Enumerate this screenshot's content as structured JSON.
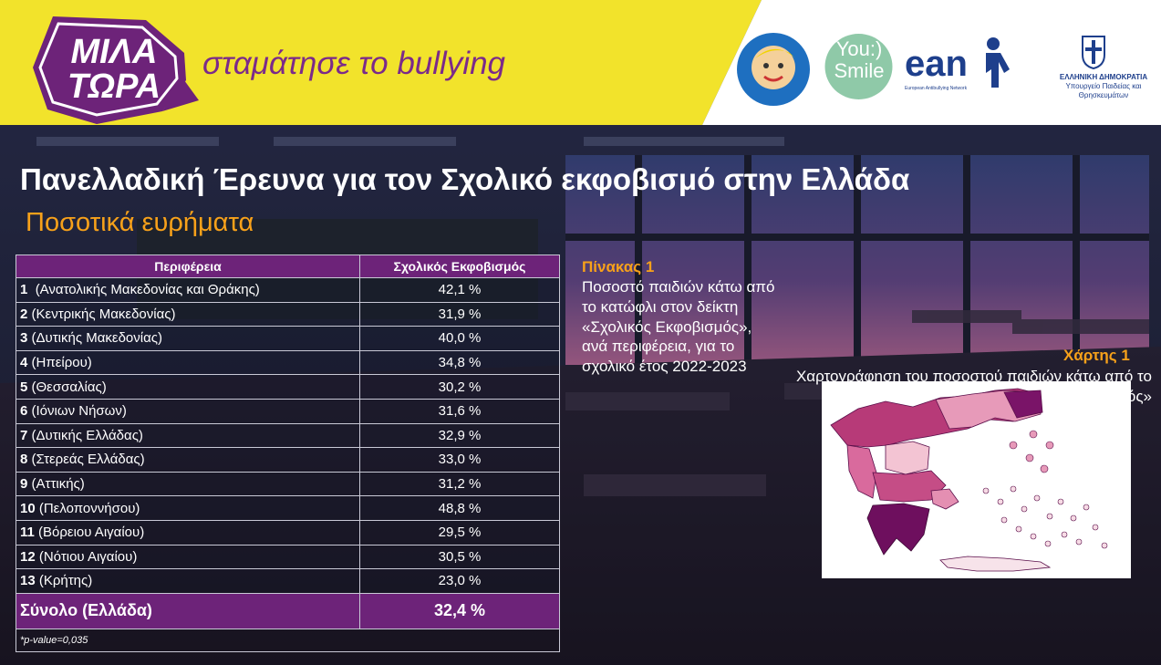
{
  "header": {
    "logo_text_line1": "ΜΙΛΑ",
    "logo_text_line2": "ΤΩΡΑ",
    "slogan": "σταμάτησε το bullying",
    "partners": {
      "smile_child_text": "Το χαμόγελο του παιδιού",
      "you_smile_text": "You:) Smile",
      "ean_text": "ean",
      "ean_sub": "European Antibullying Network",
      "gov_line1": "ΕΛΛΗΝΙΚΗ ΔΗΜΟΚΡΑΤΙΑ",
      "gov_line2": "Υπουργείο Παιδείας και Θρησκευμάτων"
    }
  },
  "title": "Πανελλαδική Έρευνα για τον Σχολικό εκφοβισμό στην Ελλάδα",
  "subtitle": "Ποσοτικά ευρήματα",
  "table": {
    "headers": [
      "Περιφέρεια",
      "Σχολικός Εκφοβισμός"
    ],
    "rows": [
      {
        "num": "1",
        "region": "(Ανατολικής Μακεδονίας και Θράκης)",
        "value": "42,1 %"
      },
      {
        "num": "2",
        "region": "(Κεντρικής Μακεδονίας)",
        "value": "31,9 %"
      },
      {
        "num": "3",
        "region": "(Δυτικής Μακεδονίας)",
        "value": "40,0 %"
      },
      {
        "num": "4",
        "region": "(Ηπείρου)",
        "value": "34,8 %"
      },
      {
        "num": "5",
        "region": "(Θεσσαλίας)",
        "value": "30,2 %"
      },
      {
        "num": "6",
        "region": "(Ιόνιων Νήσων)",
        "value": "31,6 %"
      },
      {
        "num": "7",
        "region": "(Δυτικής Ελλάδας)",
        "value": "32,9 %"
      },
      {
        "num": "8",
        "region": "(Στερεάς Ελλάδας)",
        "value": "33,0 %"
      },
      {
        "num": "9",
        "region": "(Αττικής)",
        "value": "31,2 %"
      },
      {
        "num": "10",
        "region": "(Πελοποννήσου)",
        "value": "48,8 %"
      },
      {
        "num": "11",
        "region": "(Βόρειου Αιγαίου)",
        "value": "29,5 %"
      },
      {
        "num": "12",
        "region": "(Νότιου Αιγαίου)",
        "value": "30,5 %"
      },
      {
        "num": "13",
        "region": "(Κρήτης)",
        "value": "23,0 %"
      }
    ],
    "total_label": "Σύνολο (Ελλάδα)",
    "total_value": "32,4 %",
    "note": "*p-value=0,035"
  },
  "pinakas": {
    "label": "Πίνακας 1",
    "description": "Ποσοστό παιδιών κάτω από το κατώφλι στον δείκτη «Σχολικός Εκφοβισμός», ανά περιφέρεια, για το σχολικό έτος 2022-2023"
  },
  "map": {
    "label": "Χάρτης 1",
    "description": "Χαρτογράφηση του ποσοστού παιδιών κάτω από το κατώφλι στον δείκτη «Σχολικός Εκφοβισμός»"
  },
  "colors": {
    "header_yellow": "#f2e32b",
    "purple": "#6d2379",
    "accent_orange": "#f7a11a",
    "map_dark": "#6e0f5e",
    "map_mid": "#c8407f",
    "map_light": "#f2b3c8"
  }
}
